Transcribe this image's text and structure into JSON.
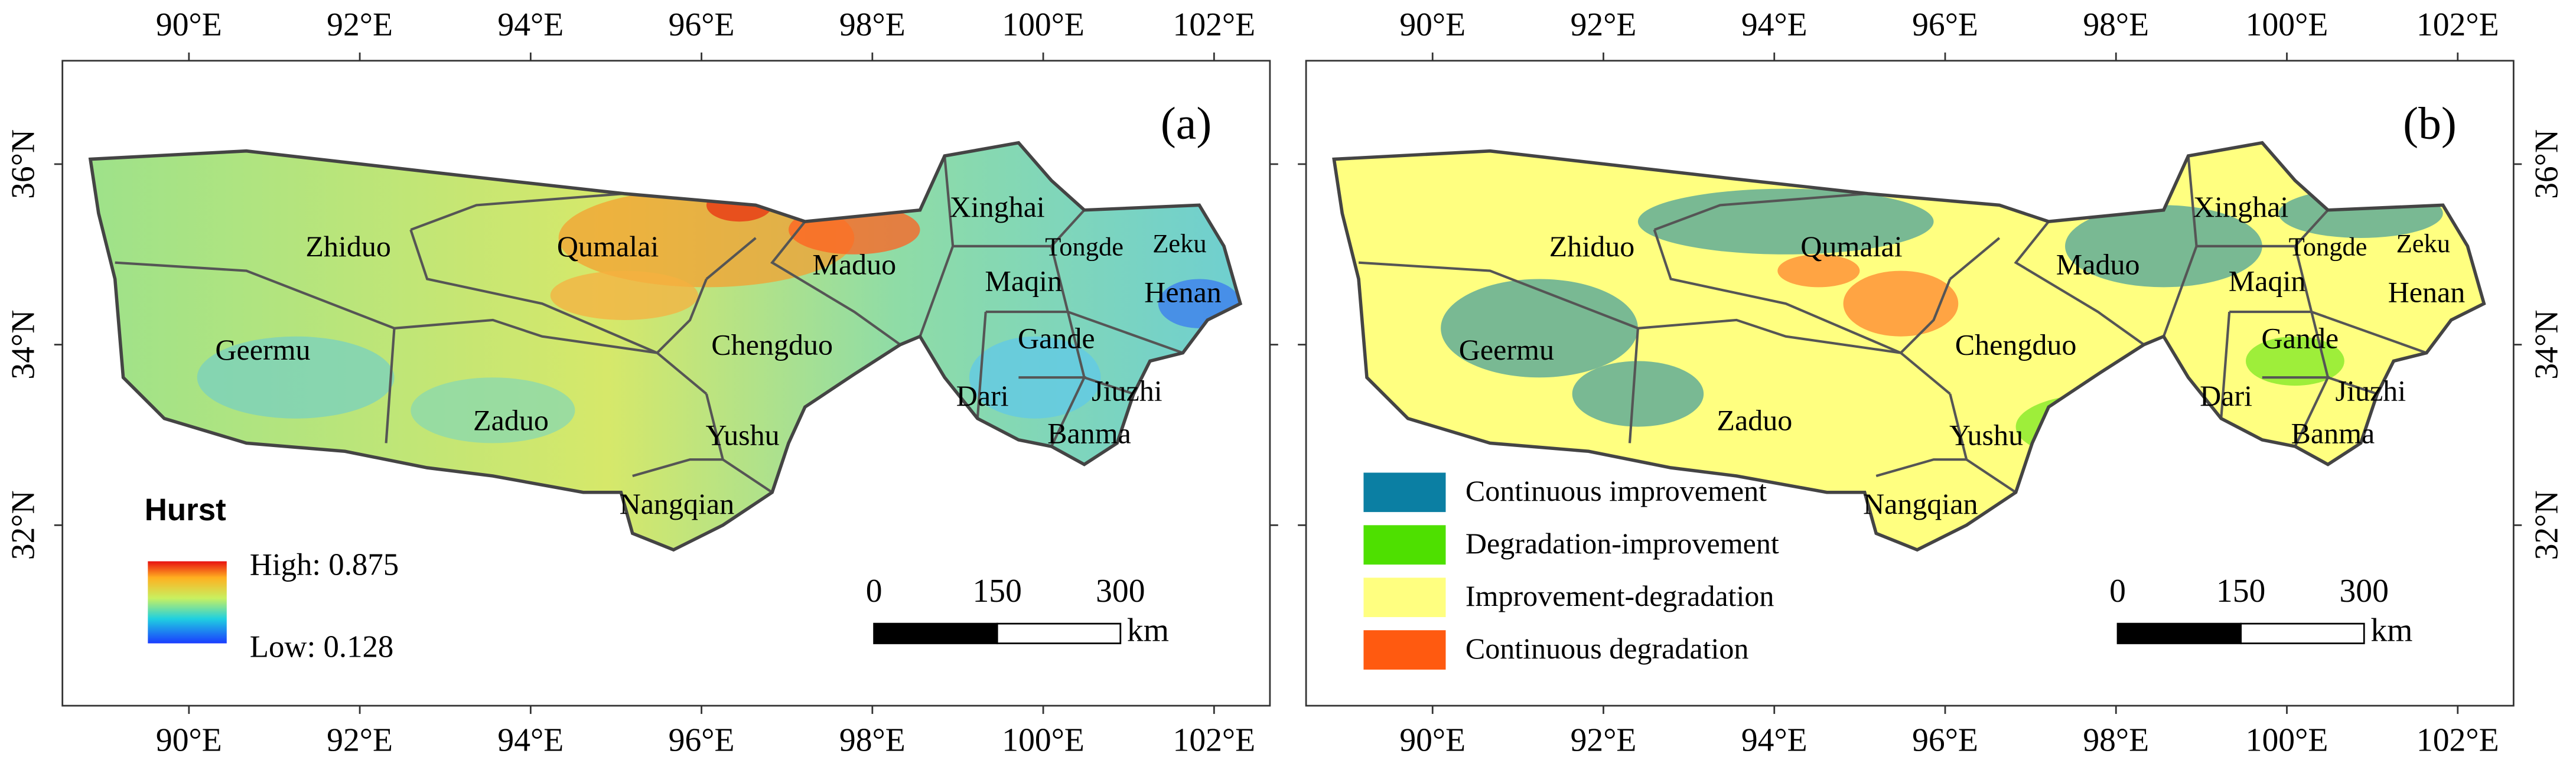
{
  "lon_labels": [
    "90°E",
    "92°E",
    "94°E",
    "96°E",
    "98°E",
    "100°E",
    "102°E"
  ],
  "lat_labels": [
    "36°N",
    "34°N",
    "32°N"
  ],
  "regions": [
    "Zhiduo",
    "Qumalai",
    "Maduo",
    "Xinghai",
    "Tongde",
    "Zeku",
    "Maqin",
    "Henan",
    "Geermu",
    "Chengduo",
    "Gande",
    "Dari",
    "Jiuzhi",
    "Zaduo",
    "Yushu",
    "Banma",
    "Nangqian"
  ],
  "scale_bar": {
    "ticks": [
      0,
      150,
      300
    ],
    "unit": "km"
  },
  "panels": [
    {
      "label": "(a)",
      "legend": {
        "title": "Hurst",
        "high": "High: 0.875",
        "low": "Low: 0.128"
      }
    },
    {
      "label": "(b)",
      "legend": {
        "items": [
          {
            "name": "Continuous improvement",
            "color": "#0b7fa3"
          },
          {
            "name": "Degradation-improvement",
            "color": "#4ee000"
          },
          {
            "name": "Improvement-degradation",
            "color": "#ffff80"
          },
          {
            "name": "Continuous degradation",
            "color": "#ff5a10"
          }
        ]
      }
    }
  ]
}
